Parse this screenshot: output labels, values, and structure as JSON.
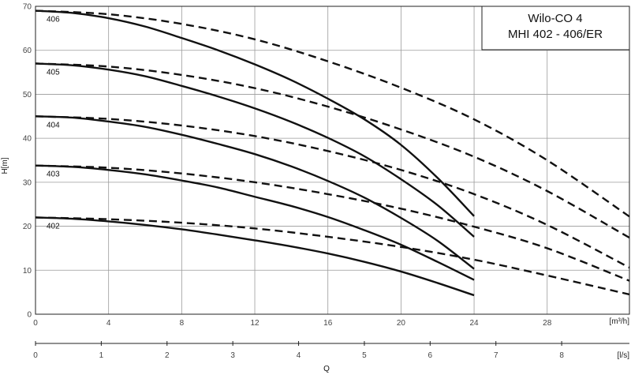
{
  "chart_data": {
    "type": "line",
    "title_lines": [
      "Wilo-CO 4",
      "MHI 402 - 406/ER"
    ],
    "ylabel": "H[m]",
    "xlabel": "Q",
    "x_unit_top": "[m³/h]",
    "x_unit_bottom": "[l/s]",
    "ylim": [
      0,
      70
    ],
    "xlim": [
      0,
      32.5
    ],
    "xlim_ls": [
      0,
      9.03
    ],
    "y_ticks": [
      "0",
      "10",
      "20",
      "30",
      "40",
      "50",
      "60",
      "70"
    ],
    "x_ticks": [
      "0",
      "4",
      "8",
      "12",
      "16",
      "20",
      "24",
      "28"
    ],
    "x2_ticks": [
      "0",
      "1",
      "2",
      "3",
      "4",
      "5",
      "6",
      "7",
      "8"
    ],
    "grid": true,
    "legend": "top-right",
    "series": [
      {
        "name": "406",
        "solid": {
          "x": [
            0,
            2,
            4,
            6,
            8,
            10,
            12,
            14,
            16,
            18,
            20,
            22,
            24
          ],
          "y": [
            69,
            68.5,
            67.3,
            65.4,
            62.8,
            60,
            56.8,
            53.2,
            49,
            44.3,
            38.5,
            31,
            22.3
          ]
        },
        "dashed": {
          "x": [
            0,
            4,
            8,
            12,
            16,
            20,
            24,
            28,
            32.5
          ],
          "y": [
            69,
            68.2,
            66,
            62.5,
            57.5,
            51.5,
            44.3,
            35,
            22.2
          ]
        }
      },
      {
        "name": "405",
        "solid": {
          "x": [
            0,
            2,
            4,
            6,
            8,
            10,
            12,
            14,
            16,
            18,
            20,
            22,
            24
          ],
          "y": [
            57,
            56.6,
            55.6,
            54.1,
            51.9,
            49.5,
            46.8,
            43.7,
            40.1,
            35.9,
            30.7,
            24.8,
            17.6
          ]
        },
        "dashed": {
          "x": [
            0,
            4,
            8,
            12,
            16,
            20,
            24,
            28,
            32.5
          ],
          "y": [
            57,
            56.3,
            54.4,
            51.4,
            47.2,
            42,
            35.8,
            28,
            17.4
          ]
        }
      },
      {
        "name": "404",
        "solid": {
          "x": [
            0,
            2,
            4,
            6,
            8,
            10,
            12,
            14,
            16,
            18,
            20,
            22,
            24
          ],
          "y": [
            45,
            44.7,
            43.8,
            42.6,
            40.8,
            38.7,
            36.4,
            33.6,
            30.3,
            26.5,
            21.9,
            16.7,
            10.3
          ]
        },
        "dashed": {
          "x": [
            0,
            4,
            8,
            12,
            16,
            20,
            24,
            28,
            32.5
          ],
          "y": [
            45,
            44.4,
            42.9,
            40.5,
            37.1,
            32.8,
            27.3,
            20.3,
            10.6
          ]
        }
      },
      {
        "name": "403",
        "solid": {
          "x": [
            0,
            2,
            4,
            6,
            8,
            10,
            12,
            14,
            16,
            18,
            20,
            22,
            24
          ],
          "y": [
            33.8,
            33.5,
            32.8,
            31.8,
            30.4,
            28.8,
            26.7,
            24.6,
            22.1,
            19.1,
            15.8,
            11.9,
            7.8
          ]
        },
        "dashed": {
          "x": [
            0,
            4,
            8,
            12,
            16,
            20,
            24,
            28,
            32.5
          ],
          "y": [
            33.8,
            33.3,
            32,
            30,
            27.3,
            24,
            19.9,
            15,
            7.6
          ]
        }
      },
      {
        "name": "402",
        "solid": {
          "x": [
            0,
            2,
            4,
            6,
            8,
            10,
            12,
            14,
            16,
            18,
            20,
            22,
            24
          ],
          "y": [
            22,
            21.7,
            21.1,
            20.3,
            19.3,
            18.1,
            16.8,
            15.4,
            13.8,
            11.9,
            9.7,
            7.1,
            4.3
          ]
        },
        "dashed": {
          "x": [
            0,
            4,
            8,
            12,
            16,
            20,
            24,
            28,
            32.5
          ],
          "y": [
            22,
            21.6,
            20.8,
            19.5,
            17.6,
            15.3,
            12.4,
            8.8,
            4.5
          ]
        }
      }
    ]
  }
}
